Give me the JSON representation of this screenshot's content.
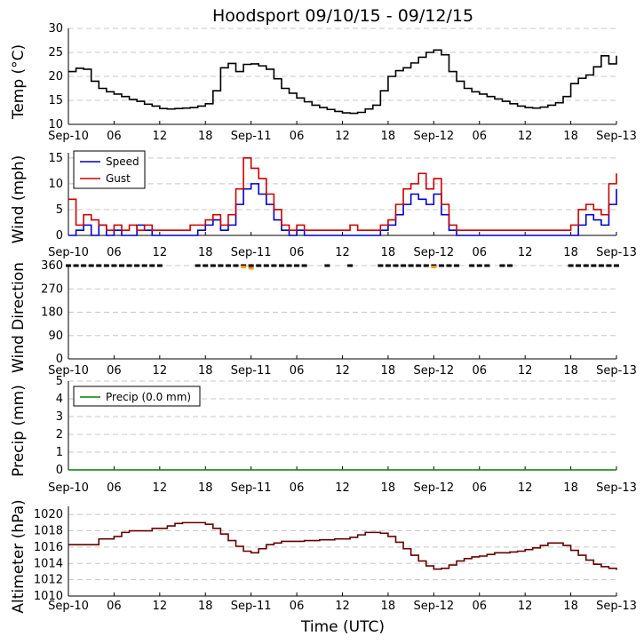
{
  "title": "Hoodsport 09/10/15 - 09/12/15",
  "xlabel": "Time (UTC)",
  "x_ticks": [
    "Sep-10",
    "06",
    "12",
    "18",
    "Sep-11",
    "06",
    "12",
    "18",
    "Sep-12",
    "06",
    "12",
    "18",
    "Sep-13"
  ],
  "chart_data": [
    {
      "type": "line",
      "name": "temperature",
      "ylabel": "Temp (°C)",
      "ylim": [
        10,
        30
      ],
      "y_ticks": [
        "10",
        "15",
        "20",
        "25",
        "30"
      ],
      "x": [
        0,
        1,
        2,
        3,
        4,
        5,
        6,
        7,
        8,
        9,
        10,
        11,
        12,
        13,
        14,
        15,
        16,
        17,
        18,
        19,
        20,
        21,
        22,
        23,
        24,
        25,
        26,
        27,
        28,
        29,
        30,
        31,
        32,
        33,
        34,
        35,
        36,
        37,
        38,
        39,
        40,
        41,
        42,
        43,
        44,
        45,
        46,
        47,
        48,
        49,
        50,
        51,
        52,
        53,
        54,
        55,
        56,
        57,
        58,
        59,
        60,
        61,
        62,
        63,
        64,
        65,
        66,
        67,
        68,
        69,
        70,
        71,
        72
      ],
      "series": [
        {
          "name": "Temp",
          "color": "#000000",
          "values": [
            21.0,
            21.7,
            21.5,
            19.0,
            17.5,
            16.8,
            16.3,
            15.8,
            15.2,
            14.8,
            14.2,
            13.8,
            13.3,
            13.2,
            13.3,
            13.4,
            13.5,
            13.8,
            14.3,
            17.0,
            21.8,
            22.7,
            21.0,
            22.5,
            22.6,
            22.2,
            21.5,
            19.5,
            17.5,
            16.5,
            15.5,
            14.7,
            14.0,
            13.5,
            13.1,
            12.7,
            12.4,
            12.3,
            12.5,
            13.2,
            14.0,
            17.0,
            20.0,
            21.2,
            21.8,
            22.8,
            24.0,
            25.0,
            25.5,
            24.5,
            21.0,
            19.0,
            17.5,
            16.8,
            16.3,
            15.8,
            15.3,
            14.8,
            14.3,
            13.8,
            13.5,
            13.4,
            13.6,
            14.0,
            14.5,
            15.8,
            18.5,
            19.6,
            20.3,
            22.0,
            24.3,
            22.6,
            24.3
          ]
        }
      ]
    },
    {
      "type": "line",
      "name": "wind",
      "ylabel": "Wind (mph)",
      "ylim": [
        0,
        16
      ],
      "y_ticks": [
        "0",
        "5",
        "10",
        "15"
      ],
      "legend": [
        "Speed",
        "Gust"
      ],
      "x": [
        0,
        1,
        2,
        3,
        4,
        5,
        6,
        7,
        8,
        9,
        10,
        11,
        12,
        13,
        14,
        15,
        16,
        17,
        18,
        19,
        20,
        21,
        22,
        23,
        24,
        25,
        26,
        27,
        28,
        29,
        30,
        31,
        32,
        33,
        34,
        35,
        36,
        37,
        38,
        39,
        40,
        41,
        42,
        43,
        44,
        45,
        46,
        47,
        48,
        49,
        50,
        51,
        52,
        53,
        54,
        55,
        56,
        57,
        58,
        59,
        60,
        61,
        62,
        63,
        64,
        65,
        66,
        67,
        68,
        69,
        70,
        71,
        72
      ],
      "series": [
        {
          "name": "Speed",
          "color": "#0000cc",
          "values": [
            0,
            1,
            2,
            0,
            2,
            0,
            1,
            0,
            0,
            2,
            1,
            0,
            0,
            0,
            0,
            0,
            0,
            1,
            2,
            3,
            1,
            2,
            6,
            9,
            10,
            8,
            6,
            3,
            1,
            0,
            1,
            0,
            0,
            0,
            0,
            0,
            0,
            0,
            0,
            0,
            0,
            1,
            2,
            4,
            6,
            8,
            7,
            6,
            8,
            4,
            1,
            0,
            0,
            0,
            0,
            0,
            0,
            0,
            0,
            0,
            0,
            0,
            0,
            0,
            0,
            0,
            0,
            2,
            4,
            3,
            2,
            6,
            9
          ]
        },
        {
          "name": "Gust",
          "color": "#cc0000",
          "values": [
            7,
            2,
            4,
            3,
            2,
            1,
            2,
            1,
            2,
            1,
            2,
            1,
            1,
            1,
            1,
            1,
            2,
            2,
            3,
            4,
            2,
            4,
            9,
            15,
            13,
            11,
            8,
            5,
            2,
            1,
            2,
            1,
            1,
            1,
            1,
            1,
            1,
            2,
            1,
            1,
            1,
            2,
            3,
            6,
            9,
            10,
            12,
            9,
            11,
            6,
            2,
            1,
            1,
            1,
            1,
            1,
            1,
            1,
            1,
            1,
            1,
            1,
            1,
            1,
            1,
            1,
            2,
            5,
            6,
            5,
            4,
            10,
            12
          ]
        }
      ]
    },
    {
      "type": "scatter",
      "name": "wind_direction",
      "ylabel": "Wind Direction",
      "ylim": [
        0,
        360
      ],
      "y_ticks": [
        "0",
        "90",
        "180",
        "270",
        "360"
      ],
      "series": [
        {
          "name": "Direction",
          "color": "#000000",
          "x": [
            0,
            1,
            2,
            3,
            4,
            5,
            6,
            7,
            8,
            9,
            10,
            11,
            12,
            17,
            18,
            19,
            20,
            21,
            22,
            23,
            24,
            25,
            26,
            27,
            28,
            29,
            30,
            31,
            34,
            37,
            41,
            42,
            43,
            44,
            45,
            46,
            47,
            48,
            49,
            50,
            51,
            53,
            54,
            55,
            57,
            58,
            66,
            67,
            68,
            69,
            70,
            71,
            72
          ],
          "values": [
            360,
            360,
            360,
            360,
            360,
            360,
            360,
            360,
            360,
            360,
            360,
            360,
            360,
            360,
            360,
            360,
            360,
            360,
            360,
            360,
            360,
            360,
            360,
            360,
            360,
            360,
            360,
            360,
            360,
            360,
            360,
            360,
            360,
            360,
            360,
            360,
            360,
            360,
            360,
            360,
            360,
            360,
            360,
            360,
            360,
            360,
            360,
            360,
            360,
            360,
            360,
            360,
            360
          ]
        },
        {
          "name": "Direction (gust)",
          "color": "#ff9900",
          "x": [
            23,
            24,
            48
          ],
          "values": [
            355,
            350,
            355
          ]
        }
      ]
    },
    {
      "type": "line",
      "name": "precip",
      "ylabel": "Precip (mm)",
      "ylim": [
        0,
        5
      ],
      "y_ticks": [
        "0",
        "1",
        "2",
        "3",
        "4",
        "5"
      ],
      "legend": [
        "Precip (0.0 mm)"
      ],
      "x": [
        0,
        72
      ],
      "series": [
        {
          "name": "Precip (0.0 mm)",
          "color": "#008000",
          "values": [
            0,
            0
          ]
        }
      ]
    },
    {
      "type": "line",
      "name": "altimeter",
      "ylabel": "Altimeter (hPa)",
      "ylim": [
        1010,
        1021
      ],
      "y_ticks": [
        "1010",
        "1012",
        "1014",
        "1016",
        "1018",
        "1020"
      ],
      "x": [
        0,
        1,
        2,
        3,
        4,
        5,
        6,
        7,
        8,
        9,
        10,
        11,
        12,
        13,
        14,
        15,
        16,
        17,
        18,
        19,
        20,
        21,
        22,
        23,
        24,
        25,
        26,
        27,
        28,
        29,
        30,
        31,
        32,
        33,
        34,
        35,
        36,
        37,
        38,
        39,
        40,
        41,
        42,
        43,
        44,
        45,
        46,
        47,
        48,
        49,
        50,
        51,
        52,
        53,
        54,
        55,
        56,
        57,
        58,
        59,
        60,
        61,
        62,
        63,
        64,
        65,
        66,
        67,
        68,
        69,
        70,
        71,
        72
      ],
      "series": [
        {
          "name": "Altimeter",
          "color": "#660000",
          "values": [
            1016.3,
            1016.3,
            1016.3,
            1016.3,
            1017.0,
            1017.0,
            1017.3,
            1017.8,
            1018.0,
            1018.0,
            1018.0,
            1018.3,
            1018.3,
            1018.6,
            1018.9,
            1019.0,
            1019.0,
            1019.0,
            1018.8,
            1018.3,
            1017.6,
            1016.8,
            1016.1,
            1015.5,
            1015.3,
            1015.8,
            1016.3,
            1016.5,
            1016.7,
            1016.7,
            1016.7,
            1016.8,
            1016.8,
            1016.9,
            1016.9,
            1017.0,
            1017.0,
            1017.2,
            1017.5,
            1017.8,
            1017.8,
            1017.7,
            1017.3,
            1016.6,
            1015.8,
            1015.0,
            1014.3,
            1013.7,
            1013.3,
            1013.4,
            1013.8,
            1014.3,
            1014.6,
            1014.8,
            1014.9,
            1015.1,
            1015.3,
            1015.3,
            1015.4,
            1015.5,
            1015.7,
            1015.9,
            1016.2,
            1016.5,
            1016.5,
            1016.2,
            1015.6,
            1015.0,
            1014.4,
            1013.9,
            1013.6,
            1013.4,
            1013.2
          ]
        }
      ]
    }
  ]
}
